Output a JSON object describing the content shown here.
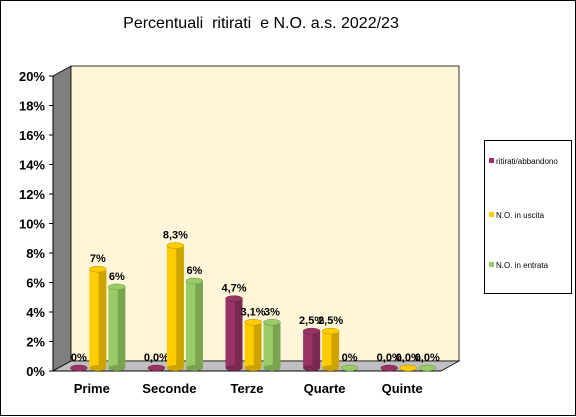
{
  "chart_data": {
    "type": "bar",
    "title": "Percentuali  ritirati  e N.O. a.s. 2022/23",
    "categories": [
      "Prime",
      "Seconde",
      "Terze",
      "Quarte",
      "Quinte"
    ],
    "ylim": [
      0,
      20
    ],
    "yticks": [
      "0%",
      "2%",
      "4%",
      "6%",
      "8%",
      "10%",
      "12%",
      "14%",
      "16%",
      "18%",
      "20%"
    ],
    "grid": false,
    "legend_position": "right",
    "series": [
      {
        "name": "ritirati/abbandono",
        "color": "#993366",
        "values": [
          0,
          0,
          4.7,
          2.5,
          0
        ],
        "labels": [
          "0%",
          "0,0%",
          "4,7%",
          "2,5%",
          "0,0%"
        ]
      },
      {
        "name": "N.O. in uscita",
        "color": "#FFCC00",
        "values": [
          6.7,
          8.3,
          3.1,
          2.5,
          0
        ],
        "labels": [
          "7%",
          "8,3%",
          "3,1%",
          "2,5%",
          "0,0%"
        ]
      },
      {
        "name": "N.O. in entrata",
        "color": "#99CC66",
        "values": [
          5.5,
          5.9,
          3.1,
          0,
          0
        ],
        "labels": [
          "6%",
          "6%",
          "3%",
          "0%",
          "0,0%"
        ]
      }
    ],
    "colors": {
      "wall": "#FFF5D9",
      "floor": "#C0C0C0",
      "side_wall": "#7F7F7F"
    }
  }
}
